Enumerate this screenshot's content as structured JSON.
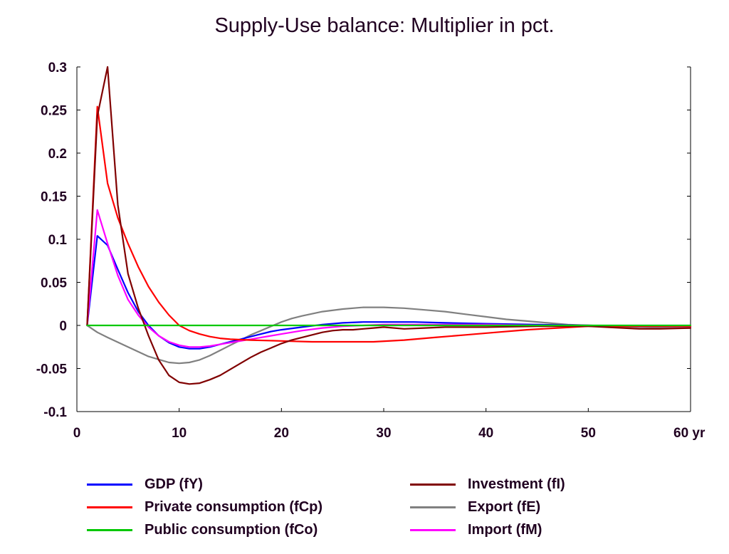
{
  "chart_data": {
    "type": "line",
    "title": "Supply-Use balance: Multiplier in pct.",
    "xlabel": "",
    "ylabel": "",
    "x_unit_label": "yr",
    "xlim": [
      0,
      60
    ],
    "ylim": [
      -0.1,
      0.3
    ],
    "x_ticks": [
      0,
      10,
      20,
      30,
      40,
      50,
      60
    ],
    "x_tick_labels": [
      "0",
      "10",
      "20",
      "30",
      "40",
      "50",
      "60 yr"
    ],
    "y_ticks": [
      0.3,
      0.25,
      0.2,
      0.15,
      0.1,
      0.05,
      0,
      -0.05,
      -0.1
    ],
    "y_tick_labels": [
      "0.3",
      "0.25",
      "0.2",
      "0.15",
      "0.1",
      "0.05",
      "0",
      "-0.05",
      "-0.1"
    ],
    "grid": false,
    "legend_position": "bottom",
    "series": [
      {
        "name": "GDP (fY)",
        "color": "#0000ff",
        "x": [
          1,
          2,
          3,
          4,
          5,
          6,
          7,
          8,
          9,
          10,
          11,
          12,
          13,
          14,
          15,
          16,
          17,
          18,
          19,
          20,
          22,
          24,
          26,
          28,
          30,
          33,
          36,
          40,
          45,
          50,
          55,
          60
        ],
        "y": [
          0,
          0.104,
          0.093,
          0.065,
          0.038,
          0.016,
          0.0,
          -0.012,
          -0.02,
          -0.025,
          -0.027,
          -0.027,
          -0.025,
          -0.022,
          -0.019,
          -0.016,
          -0.013,
          -0.01,
          -0.007,
          -0.005,
          -0.002,
          0.001,
          0.003,
          0.004,
          0.004,
          0.004,
          0.003,
          0.002,
          0.001,
          0.0,
          -0.001,
          -0.001
        ]
      },
      {
        "name": "Private consumption (fCp)",
        "color": "#ff0000",
        "x": [
          1,
          2,
          3,
          4,
          5,
          6,
          7,
          8,
          9,
          10,
          11,
          12,
          13,
          14,
          15,
          17,
          20,
          23,
          26,
          29,
          32,
          35,
          38,
          41,
          44,
          47,
          50,
          55,
          60
        ],
        "y": [
          0,
          0.254,
          0.165,
          0.125,
          0.095,
          0.068,
          0.045,
          0.027,
          0.012,
          0.0,
          -0.006,
          -0.01,
          -0.013,
          -0.015,
          -0.016,
          -0.017,
          -0.018,
          -0.019,
          -0.019,
          -0.019,
          -0.017,
          -0.014,
          -0.011,
          -0.008,
          -0.005,
          -0.003,
          -0.001,
          -0.001,
          -0.001
        ]
      },
      {
        "name": "Public consumption (fCo)",
        "color": "#00c800",
        "x": [
          1,
          60
        ],
        "y": [
          0,
          0
        ]
      },
      {
        "name": "Investment (fI)",
        "color": "#800000",
        "x": [
          1,
          2,
          3,
          4,
          5,
          6,
          7,
          8,
          9,
          10,
          11,
          12,
          13,
          14,
          15,
          16,
          17,
          18,
          19,
          20,
          21,
          22,
          23,
          24,
          25,
          26,
          27,
          28,
          29,
          30,
          32,
          34,
          36,
          40,
          45,
          50,
          55,
          57,
          60
        ],
        "y": [
          0,
          0.243,
          0.3,
          0.14,
          0.06,
          0.02,
          -0.012,
          -0.04,
          -0.058,
          -0.066,
          -0.068,
          -0.067,
          -0.063,
          -0.058,
          -0.051,
          -0.044,
          -0.037,
          -0.031,
          -0.026,
          -0.021,
          -0.017,
          -0.014,
          -0.011,
          -0.008,
          -0.006,
          -0.005,
          -0.005,
          -0.004,
          -0.003,
          -0.002,
          -0.004,
          -0.003,
          -0.002,
          -0.002,
          -0.001,
          -0.001,
          -0.004,
          -0.004,
          -0.003
        ]
      },
      {
        "name": "Export (fE)",
        "color": "#808080",
        "x": [
          1,
          2,
          3,
          5,
          7,
          9,
          10,
          11,
          12,
          13,
          14,
          15,
          16,
          17,
          18,
          19,
          20,
          21,
          22,
          24,
          26,
          28,
          30,
          32,
          34,
          36,
          38,
          40,
          42,
          44,
          46,
          48,
          50,
          52,
          55,
          58,
          60
        ],
        "y": [
          0,
          -0.008,
          -0.014,
          -0.025,
          -0.036,
          -0.043,
          -0.044,
          -0.043,
          -0.04,
          -0.035,
          -0.029,
          -0.023,
          -0.017,
          -0.011,
          -0.006,
          -0.001,
          0.004,
          0.008,
          0.011,
          0.016,
          0.019,
          0.021,
          0.021,
          0.02,
          0.018,
          0.016,
          0.013,
          0.01,
          0.007,
          0.005,
          0.003,
          0.001,
          0.0,
          -0.001,
          -0.002,
          -0.003,
          -0.003
        ]
      },
      {
        "name": "Import (fM)",
        "color": "#ff00ff",
        "x": [
          1,
          2,
          3,
          4,
          5,
          6,
          7,
          8,
          9,
          10,
          11,
          12,
          13,
          14,
          15,
          16,
          17,
          18,
          19,
          20,
          22,
          24,
          26,
          28,
          30,
          33,
          36,
          40,
          45,
          50,
          55,
          60
        ],
        "y": [
          0,
          0.134,
          0.095,
          0.058,
          0.03,
          0.012,
          -0.002,
          -0.012,
          -0.019,
          -0.023,
          -0.025,
          -0.025,
          -0.024,
          -0.022,
          -0.02,
          -0.018,
          -0.016,
          -0.014,
          -0.012,
          -0.01,
          -0.006,
          -0.003,
          -0.001,
          0.0,
          0.001,
          0.001,
          0.001,
          0.001,
          0.0,
          0.0,
          -0.001,
          -0.001
        ]
      }
    ]
  },
  "legend": {
    "items": [
      {
        "label": "GDP (fY)",
        "color": "#0000ff"
      },
      {
        "label": "Private consumption (fCp)",
        "color": "#ff0000"
      },
      {
        "label": "Public consumption (fCo)",
        "color": "#00c800"
      },
      {
        "label": "Investment (fI)",
        "color": "#800000"
      },
      {
        "label": "Export (fE)",
        "color": "#808080"
      },
      {
        "label": "Import (fM)",
        "color": "#ff00ff"
      }
    ]
  }
}
